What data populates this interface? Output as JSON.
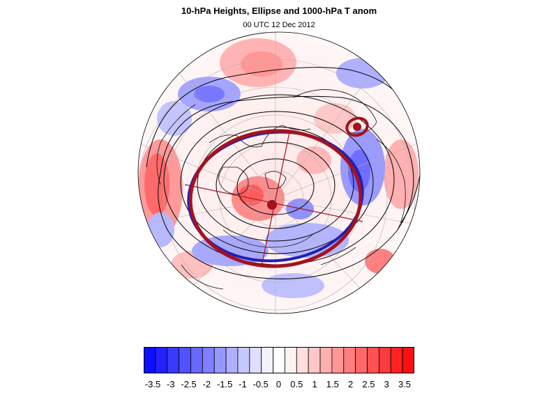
{
  "title": "10-hPa Heights, Ellipse and 1000-hPa T anom",
  "subtitle": "00 UTC 12 Dec 2012",
  "colorbar": {
    "labels": [
      "-3.5",
      "-3",
      "-2.5",
      "-2",
      "-1.5",
      "-1",
      "-0.5",
      "0",
      "0.5",
      "1",
      "1.5",
      "2",
      "2.5",
      "3",
      "3.5"
    ],
    "colors": [
      "#0f0fff",
      "#2222ff",
      "#3a3aff",
      "#5151ff",
      "#6868ff",
      "#7f7fff",
      "#9797ff",
      "#afafff",
      "#c7c7ff",
      "#dedeff",
      "#f2f2ff",
      "#ffffff",
      "#fff2f2",
      "#ffdede",
      "#ffc7c7",
      "#ffafaf",
      "#ff9797",
      "#ff7f7f",
      "#ff6868",
      "#ff5151",
      "#ff3a3a",
      "#ff2222",
      "#ff0f0f"
    ]
  },
  "map": {
    "projection": "orthographic north polar",
    "overlay_colors": {
      "ellipse_main": "#a3121e",
      "ellipse_blue": "#1f20b8",
      "contour": "#000000",
      "grid": "#b0b0b0"
    }
  }
}
